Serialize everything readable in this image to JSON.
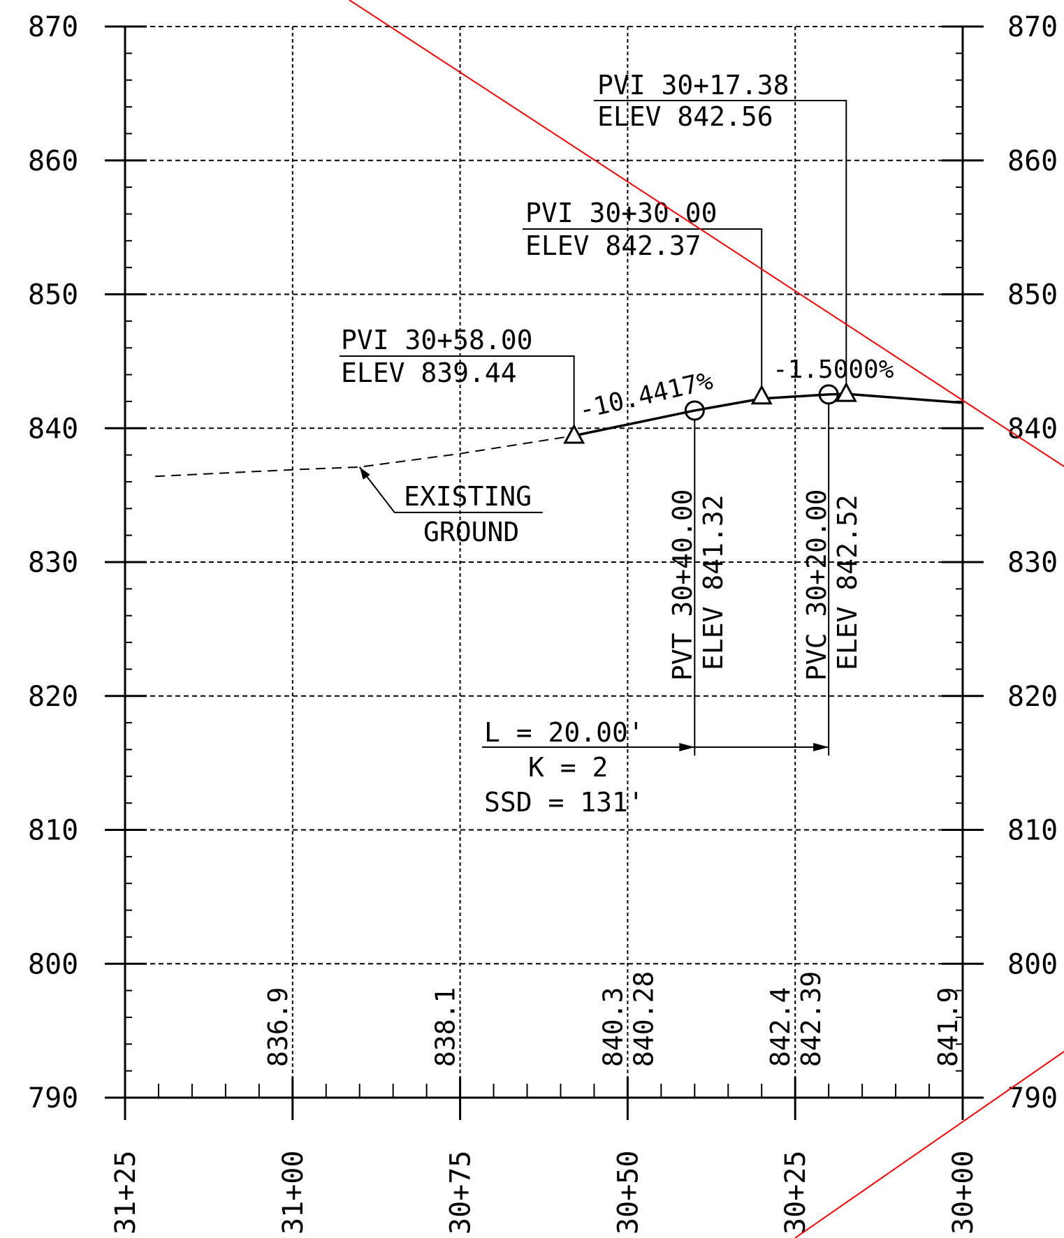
{
  "profile": {
    "colors": {
      "ink": "#000000",
      "markup": "#ff0000",
      "background": "#ffffff"
    },
    "elevation_axis": {
      "ticks": [
        870,
        860,
        850,
        840,
        830,
        820,
        810,
        800,
        790
      ],
      "labels": [
        "870",
        "860",
        "850",
        "840",
        "830",
        "820",
        "810",
        "800",
        "790"
      ]
    },
    "station_axis": {
      "ticks": [
        "31+25",
        "31+00",
        "30+75",
        "30+50",
        "30+25",
        "30+00"
      ],
      "stations_ft": [
        3125,
        3100,
        3075,
        3050,
        3025,
        3000
      ]
    },
    "pvis": [
      {
        "label": "PVI 30+17.38",
        "elev_label": "ELEV 842.56",
        "station_ft": 3017.38,
        "elev": 842.56
      },
      {
        "label": "PVI 30+30.00",
        "elev_label": "ELEV 842.37",
        "station_ft": 3030.0,
        "elev": 842.37
      },
      {
        "label": "PVI 30+58.00",
        "elev_label": "ELEV 839.44",
        "station_ft": 3058.0,
        "elev": 839.44
      }
    ],
    "curve_points": [
      {
        "label": "PVT 30+40.00",
        "elev_label": "ELEV 841.32",
        "station_ft": 3040.0,
        "elev": 841.32
      },
      {
        "label": "PVC 30+20.00",
        "elev_label": "ELEV 842.52",
        "station_ft": 3020.0,
        "elev": 842.52
      }
    ],
    "grades": [
      "-10.4417%",
      "-1.5000%"
    ],
    "curve_info": {
      "length": "L = 20.00'",
      "k": "K = 2",
      "ssd": "SSD = 131'"
    },
    "existing_ground": {
      "label_line1": "EXISTING",
      "label_line2": "GROUND",
      "points": [
        {
          "station_ft": 3120.5,
          "elev": 836.4
        },
        {
          "station_ft": 3100,
          "elev": 836.9
        },
        {
          "station_ft": 3090,
          "elev": 837.1
        },
        {
          "station_ft": 3075,
          "elev": 838.1
        },
        {
          "station_ft": 3058,
          "elev": 839.44
        }
      ]
    },
    "proposed_grade": [
      {
        "station_ft": 3058,
        "elev": 839.44
      },
      {
        "station_ft": 3040,
        "elev": 841.32
      },
      {
        "station_ft": 3030,
        "elev": 842.21
      },
      {
        "station_ft": 3020,
        "elev": 842.52
      },
      {
        "station_ft": 3017.38,
        "elev": 842.56
      },
      {
        "station_ft": 3000,
        "elev": 841.9
      }
    ],
    "bottom_elevations": [
      {
        "station_ft": 3100,
        "existing": "836.9",
        "proposed": ""
      },
      {
        "station_ft": 3075,
        "existing": "838.1",
        "proposed": ""
      },
      {
        "station_ft": 3050,
        "existing": "840.3",
        "proposed": "840.28"
      },
      {
        "station_ft": 3025,
        "existing": "842.4",
        "proposed": "842.39"
      },
      {
        "station_ft": 3000,
        "existing": "841.9",
        "proposed": ""
      }
    ]
  }
}
